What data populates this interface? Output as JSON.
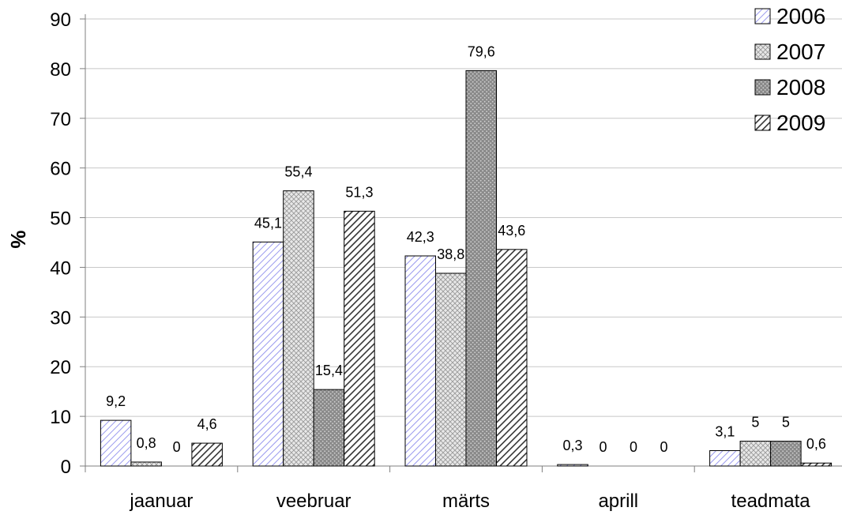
{
  "chart_data": {
    "type": "bar",
    "ylabel": "%",
    "xlabel": "",
    "title": "",
    "ylim": [
      0,
      90
    ],
    "ytick_step": 10,
    "grid": true,
    "legend_position": "top-right",
    "categories": [
      "jaanuar",
      "veebruar",
      "märts",
      "aprill",
      "teadmata"
    ],
    "series": [
      {
        "name": "2006",
        "values": [
          9.2,
          45.1,
          42.3,
          0.3,
          3.1
        ],
        "labels": [
          "9,2",
          "45,1",
          "42,3",
          "0,3",
          "3,1"
        ],
        "pattern": "diag-light",
        "color": "#9999ee"
      },
      {
        "name": "2007",
        "values": [
          0.8,
          55.4,
          38.8,
          0,
          5
        ],
        "labels": [
          "0,8",
          "55,4",
          "38,8",
          "0",
          "5"
        ],
        "pattern": "crosshatch",
        "color": "#999999"
      },
      {
        "name": "2008",
        "values": [
          0,
          15.4,
          79.6,
          0,
          5
        ],
        "labels": [
          "0",
          "15,4",
          "79,6",
          "0",
          "5"
        ],
        "pattern": "dots-dark",
        "color": "#777777"
      },
      {
        "name": "2009",
        "values": [
          4.6,
          51.3,
          43.6,
          0,
          0.6
        ],
        "labels": [
          "4,6",
          "51,3",
          "43,6",
          "0",
          "0,6"
        ],
        "pattern": "diag-dark",
        "color": "#333333"
      }
    ]
  }
}
